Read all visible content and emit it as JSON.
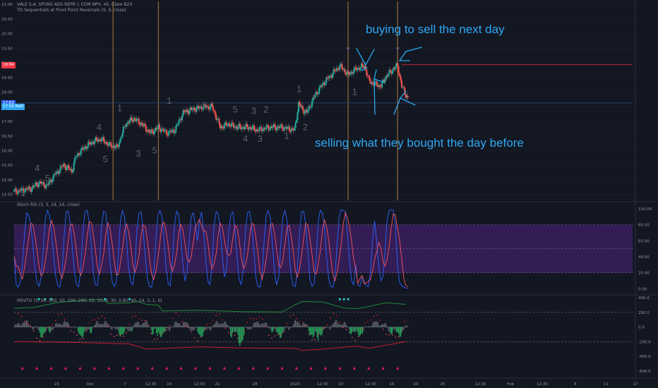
{
  "chart_data": {
    "type": "candlestick",
    "title": "VALE S.A. SPONS ADS REPR 1 COM NPV, 45, Cboe BZX",
    "indicator_label": "TD Sequentials at Pivot Point Reversals (9, 9, close)",
    "y_ticks": [
      "21.00",
      "20.50",
      "20.00",
      "19.50",
      "19.00",
      "18.50",
      "18.00",
      "17.50",
      "17.00",
      "16.50",
      "16.00",
      "15.50",
      "15.00",
      "14.50"
    ],
    "y_range": [
      14.3,
      21.1
    ],
    "x_ticks": [
      "23",
      "Dec",
      "7",
      "12:30",
      "14",
      "12:30",
      "21",
      "28",
      "2023",
      "12:30",
      "10",
      "12:30",
      "14",
      "20",
      "25",
      "12:30",
      "Feb",
      "12:30",
      "8",
      "11",
      "17"
    ],
    "price_labels": [
      {
        "value": 18.94,
        "text": "18.94",
        "color": "#f23645"
      },
      {
        "value": 17.63,
        "text": "17.63",
        "color": "#2962ff"
      },
      {
        "value": 17.5,
        "text": "17.50 NaN",
        "color": "#2ea7f2"
      }
    ],
    "close_path": [
      [
        0,
        14.6
      ],
      [
        8,
        14.7
      ],
      [
        12,
        14.9
      ],
      [
        16,
        14.8
      ],
      [
        20,
        15.2
      ],
      [
        24,
        15.5
      ],
      [
        28,
        15.3
      ],
      [
        30,
        15.8
      ],
      [
        34,
        16.1
      ],
      [
        38,
        16.3
      ],
      [
        42,
        16.4
      ],
      [
        46,
        16.2
      ],
      [
        50,
        16.1
      ],
      [
        54,
        16.9
      ],
      [
        58,
        17.1
      ],
      [
        62,
        16.9
      ],
      [
        66,
        16.6
      ],
      [
        70,
        16.8
      ],
      [
        74,
        16.6
      ],
      [
        78,
        16.7
      ],
      [
        82,
        17.3
      ],
      [
        86,
        17.4
      ],
      [
        92,
        17.5
      ],
      [
        96,
        17.5
      ],
      [
        100,
        16.8
      ],
      [
        104,
        16.9
      ],
      [
        108,
        16.8
      ],
      [
        114,
        16.8
      ],
      [
        118,
        16.7
      ],
      [
        124,
        16.8
      ],
      [
        130,
        16.8
      ],
      [
        136,
        16.7
      ],
      [
        138,
        17.6
      ],
      [
        140,
        17.4
      ],
      [
        142,
        17.3
      ],
      [
        146,
        17.9
      ],
      [
        150,
        18.3
      ],
      [
        154,
        18.6
      ],
      [
        158,
        18.9
      ],
      [
        162,
        18.6
      ],
      [
        166,
        18.8
      ],
      [
        170,
        18.9
      ],
      [
        172,
        18.4
      ],
      [
        174,
        18.3
      ],
      [
        178,
        18.2
      ],
      [
        180,
        18.5
      ],
      [
        184,
        18.8
      ],
      [
        186,
        18.9
      ],
      [
        188,
        18.2
      ],
      [
        190,
        17.9
      ],
      [
        191,
        17.8
      ]
    ],
    "td_counts": [
      {
        "x": 4,
        "y": 14.45,
        "t": "1"
      },
      {
        "x": 11,
        "y": 15.3,
        "t": "4"
      },
      {
        "x": 16,
        "y": 14.95,
        "t": "5"
      },
      {
        "x": 41,
        "y": 16.7,
        "t": "4"
      },
      {
        "x": 44,
        "y": 15.6,
        "t": "5"
      },
      {
        "x": 51,
        "y": 17.35,
        "t": "1"
      },
      {
        "x": 60,
        "y": 15.8,
        "t": "3"
      },
      {
        "x": 68,
        "y": 15.9,
        "t": "5"
      },
      {
        "x": 75,
        "y": 17.6,
        "t": "1"
      },
      {
        "x": 107,
        "y": 17.3,
        "t": "5"
      },
      {
        "x": 112,
        "y": 16.3,
        "t": "4"
      },
      {
        "x": 116,
        "y": 17.25,
        "t": "3"
      },
      {
        "x": 119,
        "y": 16.3,
        "t": "3"
      },
      {
        "x": 122,
        "y": 17.3,
        "t": "2"
      },
      {
        "x": 132,
        "y": 16.4,
        "t": "1"
      },
      {
        "x": 138,
        "y": 18.0,
        "t": "1"
      },
      {
        "x": 141,
        "y": 16.7,
        "t": "2"
      },
      {
        "x": 165,
        "y": 17.9,
        "t": "1"
      }
    ],
    "vertical_lines_x": [
      48,
      70,
      162,
      186
    ],
    "pivot_markers_x": [
      162,
      186
    ],
    "resistance_line": {
      "value": 18.94,
      "from_x": 188
    },
    "support_line": {
      "value": 17.63
    },
    "stoch_rsi": {
      "label": "Stoch RSI (3, 3, 14, 14, close)",
      "y_ticks": [
        "100.00",
        "80.00",
        "60.00",
        "40.00",
        "20.00",
        "0.00"
      ],
      "band": [
        20,
        80
      ],
      "k": [
        40,
        5,
        2,
        10,
        30,
        70,
        95,
        92,
        80,
        55,
        25,
        8,
        3,
        15,
        50,
        88,
        98,
        92,
        70,
        40,
        15,
        4,
        2,
        20,
        65,
        96,
        97,
        80,
        50,
        20,
        5,
        3,
        25,
        70,
        96,
        98,
        85,
        55,
        20,
        5,
        4,
        30,
        80,
        97,
        95,
        70,
        35,
        10,
        3,
        8,
        40,
        85,
        98,
        90,
        60,
        25,
        8,
        5,
        30,
        75,
        95,
        96,
        70,
        40,
        12,
        3,
        2,
        20,
        60,
        92,
        98,
        90,
        60,
        25,
        6,
        4,
        35,
        80,
        97,
        93,
        65,
        30,
        10,
        20,
        60,
        90,
        95,
        80,
        60,
        85,
        96,
        70,
        35,
        10,
        5,
        30,
        80,
        96,
        94,
        70,
        40,
        15,
        25,
        70,
        93,
        96,
        75,
        40,
        12,
        5,
        25,
        70,
        95,
        97,
        80,
        50,
        15,
        3,
        2,
        18,
        60,
        92,
        98,
        88,
        55,
        20,
        5,
        15,
        55,
        90,
        98,
        85,
        50,
        15,
        4,
        3,
        25,
        70,
        96,
        97,
        80,
        45,
        12,
        3,
        6,
        40,
        85,
        98,
        95,
        75,
        40,
        12,
        3,
        2,
        15,
        55,
        90,
        99,
        98,
        97,
        70,
        35,
        10,
        5,
        30,
        5,
        3,
        15,
        10,
        4,
        3,
        20,
        60,
        85,
        60,
        30,
        10,
        15,
        45,
        85,
        98,
        99,
        98,
        80,
        30,
        8,
        4,
        2,
        1,
        0.5
      ],
      "d_offset": 2
    },
    "msvto": {
      "label": "MSVTO (5, 50, 100, 50, 100, 200, 22, 20, 4, 30, 0.85, 40, 14, 3, 1, 0)",
      "y_ticks": [
        "400.0",
        "200.0",
        "0.0",
        "-200.0",
        "-400.0",
        "-600.0"
      ],
      "y_range": [
        -640,
        420
      ],
      "upper_dashed": 200,
      "lower_dashed": -200,
      "green_line": [
        [
          0,
          255
        ],
        [
          10,
          270
        ],
        [
          20,
          330
        ],
        [
          30,
          360
        ],
        [
          42,
          380
        ],
        [
          46,
          320
        ],
        [
          56,
          330
        ],
        [
          60,
          350
        ],
        [
          64,
          310
        ],
        [
          70,
          300
        ],
        [
          72,
          220
        ],
        [
          90,
          230
        ],
        [
          110,
          210
        ],
        [
          130,
          205
        ],
        [
          136,
          300
        ],
        [
          140,
          350
        ],
        [
          150,
          340
        ],
        [
          160,
          260
        ],
        [
          166,
          250
        ],
        [
          172,
          280
        ],
        [
          180,
          330
        ],
        [
          190,
          310
        ]
      ],
      "red_line": [
        [
          0,
          -200
        ],
        [
          30,
          -210
        ],
        [
          56,
          -230
        ],
        [
          64,
          -300
        ],
        [
          74,
          -290
        ],
        [
          90,
          -270
        ],
        [
          110,
          -285
        ],
        [
          136,
          -290
        ],
        [
          140,
          -320
        ],
        [
          150,
          -300
        ],
        [
          166,
          -260
        ],
        [
          172,
          -290
        ],
        [
          190,
          -200
        ]
      ],
      "bars_seed": [
        0.6,
        -0.8,
        0.3,
        -0.4,
        0.9,
        -0.2,
        0.5,
        -0.7,
        0.2,
        -0.9,
        0.4,
        -0.3
      ]
    }
  },
  "annotations": {
    "top": "buying to sell the next day",
    "bottom": "selling what they bought the day before"
  },
  "colors": {
    "background": "#131722",
    "up": "#26a69a",
    "down": "#ef5350",
    "vline": "#8a6534",
    "stoch_band": "#3b1f5e",
    "stoch_k": "#2962ff",
    "stoch_d": "#f7525f",
    "annotation": "#2ea7f2",
    "td_text": "#5d606b",
    "green_line": "#1e8a38",
    "red_line": "#c21d2c"
  }
}
